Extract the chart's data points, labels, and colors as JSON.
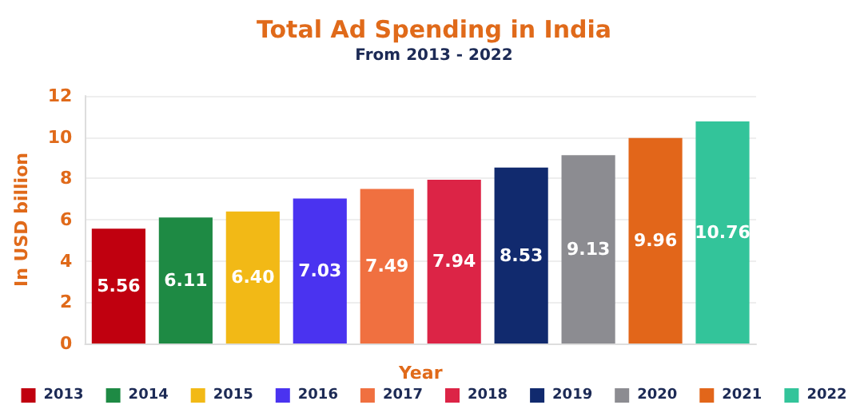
{
  "chart_data": {
    "type": "bar",
    "title": "Total Ad Spending in India",
    "subtitle": "From 2013 - 2022",
    "xlabel": "Year",
    "ylabel": "In USD billion",
    "categories": [
      null,
      null,
      null,
      null,
      null,
      null,
      null,
      null,
      null,
      null
    ],
    "series": [
      {
        "name": "2013",
        "color": "#c0000f",
        "values": [
          5.56,
          null,
          null,
          null,
          null,
          null,
          null,
          null,
          null,
          null
        ]
      },
      {
        "name": "2014",
        "color": "#1e8a44",
        "values": [
          null,
          6.11,
          null,
          null,
          null,
          null,
          null,
          null,
          null,
          null
        ]
      },
      {
        "name": "2015",
        "color": "#f2b916",
        "values": [
          null,
          null,
          6.4,
          null,
          null,
          null,
          null,
          null,
          null,
          null
        ],
        "value_labels": [
          null,
          null,
          "6.40",
          null,
          null,
          null,
          null,
          null,
          null,
          null
        ]
      },
      {
        "name": "2016",
        "color": "#4a33f0",
        "values": [
          null,
          null,
          null,
          7.03,
          null,
          null,
          null,
          null,
          null,
          null
        ]
      },
      {
        "name": "2017",
        "color": "#f07040",
        "values": [
          null,
          null,
          null,
          null,
          7.49,
          null,
          null,
          null,
          null,
          null
        ]
      },
      {
        "name": "2018",
        "color": "#dc2446",
        "values": [
          null,
          null,
          null,
          null,
          null,
          7.94,
          null,
          null,
          null,
          null
        ]
      },
      {
        "name": "2019",
        "color": "#112a6e",
        "values": [
          null,
          null,
          null,
          null,
          null,
          null,
          8.53,
          null,
          null,
          null
        ]
      },
      {
        "name": "2020",
        "color": "#8c8c91",
        "values": [
          null,
          null,
          null,
          null,
          null,
          null,
          null,
          9.13,
          null,
          null
        ]
      },
      {
        "name": "2021",
        "color": "#e2661a",
        "values": [
          null,
          null,
          null,
          null,
          null,
          null,
          null,
          null,
          9.96,
          null
        ]
      },
      {
        "name": "2022",
        "color": "#33c49a",
        "values": [
          null,
          null,
          null,
          null,
          null,
          null,
          null,
          null,
          null,
          10.76
        ]
      }
    ],
    "ylim": [
      0,
      12
    ],
    "yticks": [
      0,
      2,
      4,
      6,
      8,
      10,
      12
    ],
    "grid": "y",
    "legend": "bottom",
    "data_labels": true
  }
}
